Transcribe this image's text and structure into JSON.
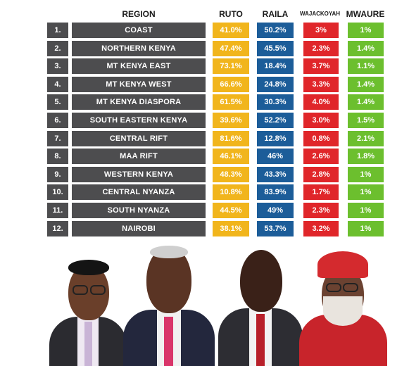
{
  "headers": {
    "region": "REGION",
    "ruto": "RUTO",
    "raila": "RAILA",
    "wajackoyah": "WAJACKOYAH",
    "mwaure": "MWAURE"
  },
  "rows": [
    {
      "num": "1.",
      "region": "COAST",
      "ruto": "41.0%",
      "raila": "50.2%",
      "wajackoyah": "3%",
      "mwaure": "1%"
    },
    {
      "num": "2.",
      "region": "NORTHERN KENYA",
      "ruto": "47.4%",
      "raila": "45.5%",
      "wajackoyah": "2.3%",
      "mwaure": "1.4%"
    },
    {
      "num": "3.",
      "region": "MT KENYA EAST",
      "ruto": "73.1%",
      "raila": "18.4%",
      "wajackoyah": "3.7%",
      "mwaure": "1.1%"
    },
    {
      "num": "4.",
      "region": "MT KENYA WEST",
      "ruto": "66.6%",
      "raila": "24.8%",
      "wajackoyah": "3.3%",
      "mwaure": "1.4%"
    },
    {
      "num": "5.",
      "region": "MT KENYA DIASPORA",
      "ruto": "61.5%",
      "raila": "30.3%",
      "wajackoyah": "4.0%",
      "mwaure": "1.4%"
    },
    {
      "num": "6.",
      "region": "SOUTH EASTERN KENYA",
      "ruto": "39.6%",
      "raila": "52.2%",
      "wajackoyah": "3.0%",
      "mwaure": "1.5%"
    },
    {
      "num": "7.",
      "region": "CENTRAL RIFT",
      "ruto": "81.6%",
      "raila": "12.8%",
      "wajackoyah": "0.8%",
      "mwaure": "2.1%"
    },
    {
      "num": "8.",
      "region": "MAA RIFT",
      "ruto": "46.1%",
      "raila": "46%",
      "wajackoyah": "2.6%",
      "mwaure": "1.8%"
    },
    {
      "num": "9.",
      "region": "WESTERN KENYA",
      "ruto": "48.3%",
      "raila": "43.3%",
      "wajackoyah": "2.8%",
      "mwaure": "1%"
    },
    {
      "num": "10.",
      "region": "CENTRAL NYANZA",
      "ruto": "10.8%",
      "raila": "83.9%",
      "wajackoyah": "1.7%",
      "mwaure": "1%"
    },
    {
      "num": "11.",
      "region": "SOUTH NYANZA",
      "ruto": "44.5%",
      "raila": "49%",
      "wajackoyah": "2.3%",
      "mwaure": "1%"
    },
    {
      "num": "12.",
      "region": "NAIROBI",
      "ruto": "38.1%",
      "raila": "53.7%",
      "wajackoyah": "3.2%",
      "mwaure": "1%"
    }
  ],
  "colors": {
    "ruto": "#f1b51c",
    "raila": "#1c5d99",
    "wajackoyah": "#e0262a",
    "mwaure": "#6cbf2e",
    "region": "#4d4d4f"
  }
}
